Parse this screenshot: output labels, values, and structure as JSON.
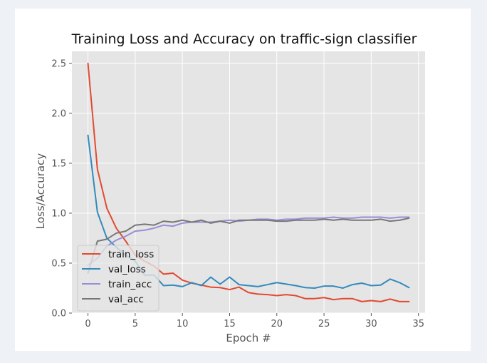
{
  "chart_data": {
    "type": "line",
    "title": "Training Loss and Accuracy on traffic-sign classifier",
    "xlabel": "Epoch #",
    "ylabel": "Loss/Accuracy",
    "xlim": [
      -1.7,
      35.7
    ],
    "ylim": [
      0,
      2.62
    ],
    "xticks": [
      "0",
      "5",
      "10",
      "15",
      "20",
      "25",
      "30",
      "35"
    ],
    "yticks": [
      "0.0",
      "0.5",
      "1.0",
      "1.5",
      "2.0",
      "2.5"
    ],
    "grid": true,
    "legend_position": "lower-left",
    "x": [
      0,
      1,
      2,
      3,
      4,
      5,
      6,
      7,
      8,
      9,
      10,
      11,
      12,
      13,
      14,
      15,
      16,
      17,
      18,
      19,
      20,
      21,
      22,
      23,
      24,
      25,
      26,
      27,
      28,
      29,
      30,
      31,
      32,
      33,
      34
    ],
    "series": [
      {
        "name": "train_loss",
        "color": "#e24a33",
        "values": [
          2.5,
          1.44,
          1.05,
          0.85,
          0.72,
          0.58,
          0.52,
          0.47,
          0.39,
          0.4,
          0.33,
          0.3,
          0.28,
          0.26,
          0.255,
          0.235,
          0.26,
          0.205,
          0.19,
          0.185,
          0.175,
          0.185,
          0.175,
          0.145,
          0.145,
          0.155,
          0.135,
          0.145,
          0.145,
          0.115,
          0.125,
          0.115,
          0.14,
          0.115,
          0.115
        ]
      },
      {
        "name": "val_loss",
        "color": "#348abd",
        "values": [
          1.78,
          1.01,
          0.75,
          0.66,
          0.58,
          0.52,
          0.38,
          0.38,
          0.275,
          0.28,
          0.265,
          0.305,
          0.275,
          0.36,
          0.29,
          0.36,
          0.285,
          0.275,
          0.265,
          0.285,
          0.305,
          0.29,
          0.275,
          0.255,
          0.25,
          0.27,
          0.27,
          0.25,
          0.285,
          0.3,
          0.275,
          0.28,
          0.34,
          0.305,
          0.255
        ]
      },
      {
        "name": "train_acc",
        "color": "#988ed5",
        "values": [
          0.48,
          0.55,
          0.67,
          0.73,
          0.77,
          0.82,
          0.83,
          0.85,
          0.88,
          0.87,
          0.9,
          0.91,
          0.91,
          0.91,
          0.92,
          0.93,
          0.92,
          0.93,
          0.94,
          0.94,
          0.93,
          0.94,
          0.94,
          0.95,
          0.95,
          0.95,
          0.96,
          0.95,
          0.95,
          0.96,
          0.96,
          0.96,
          0.95,
          0.96,
          0.96
        ]
      },
      {
        "name": "val_acc",
        "color": "#777777",
        "values": [
          0.4,
          0.72,
          0.74,
          0.8,
          0.82,
          0.88,
          0.89,
          0.88,
          0.92,
          0.91,
          0.93,
          0.91,
          0.93,
          0.9,
          0.92,
          0.9,
          0.93,
          0.93,
          0.93,
          0.93,
          0.92,
          0.92,
          0.93,
          0.93,
          0.93,
          0.94,
          0.93,
          0.94,
          0.93,
          0.93,
          0.93,
          0.94,
          0.92,
          0.93,
          0.95
        ]
      }
    ]
  }
}
